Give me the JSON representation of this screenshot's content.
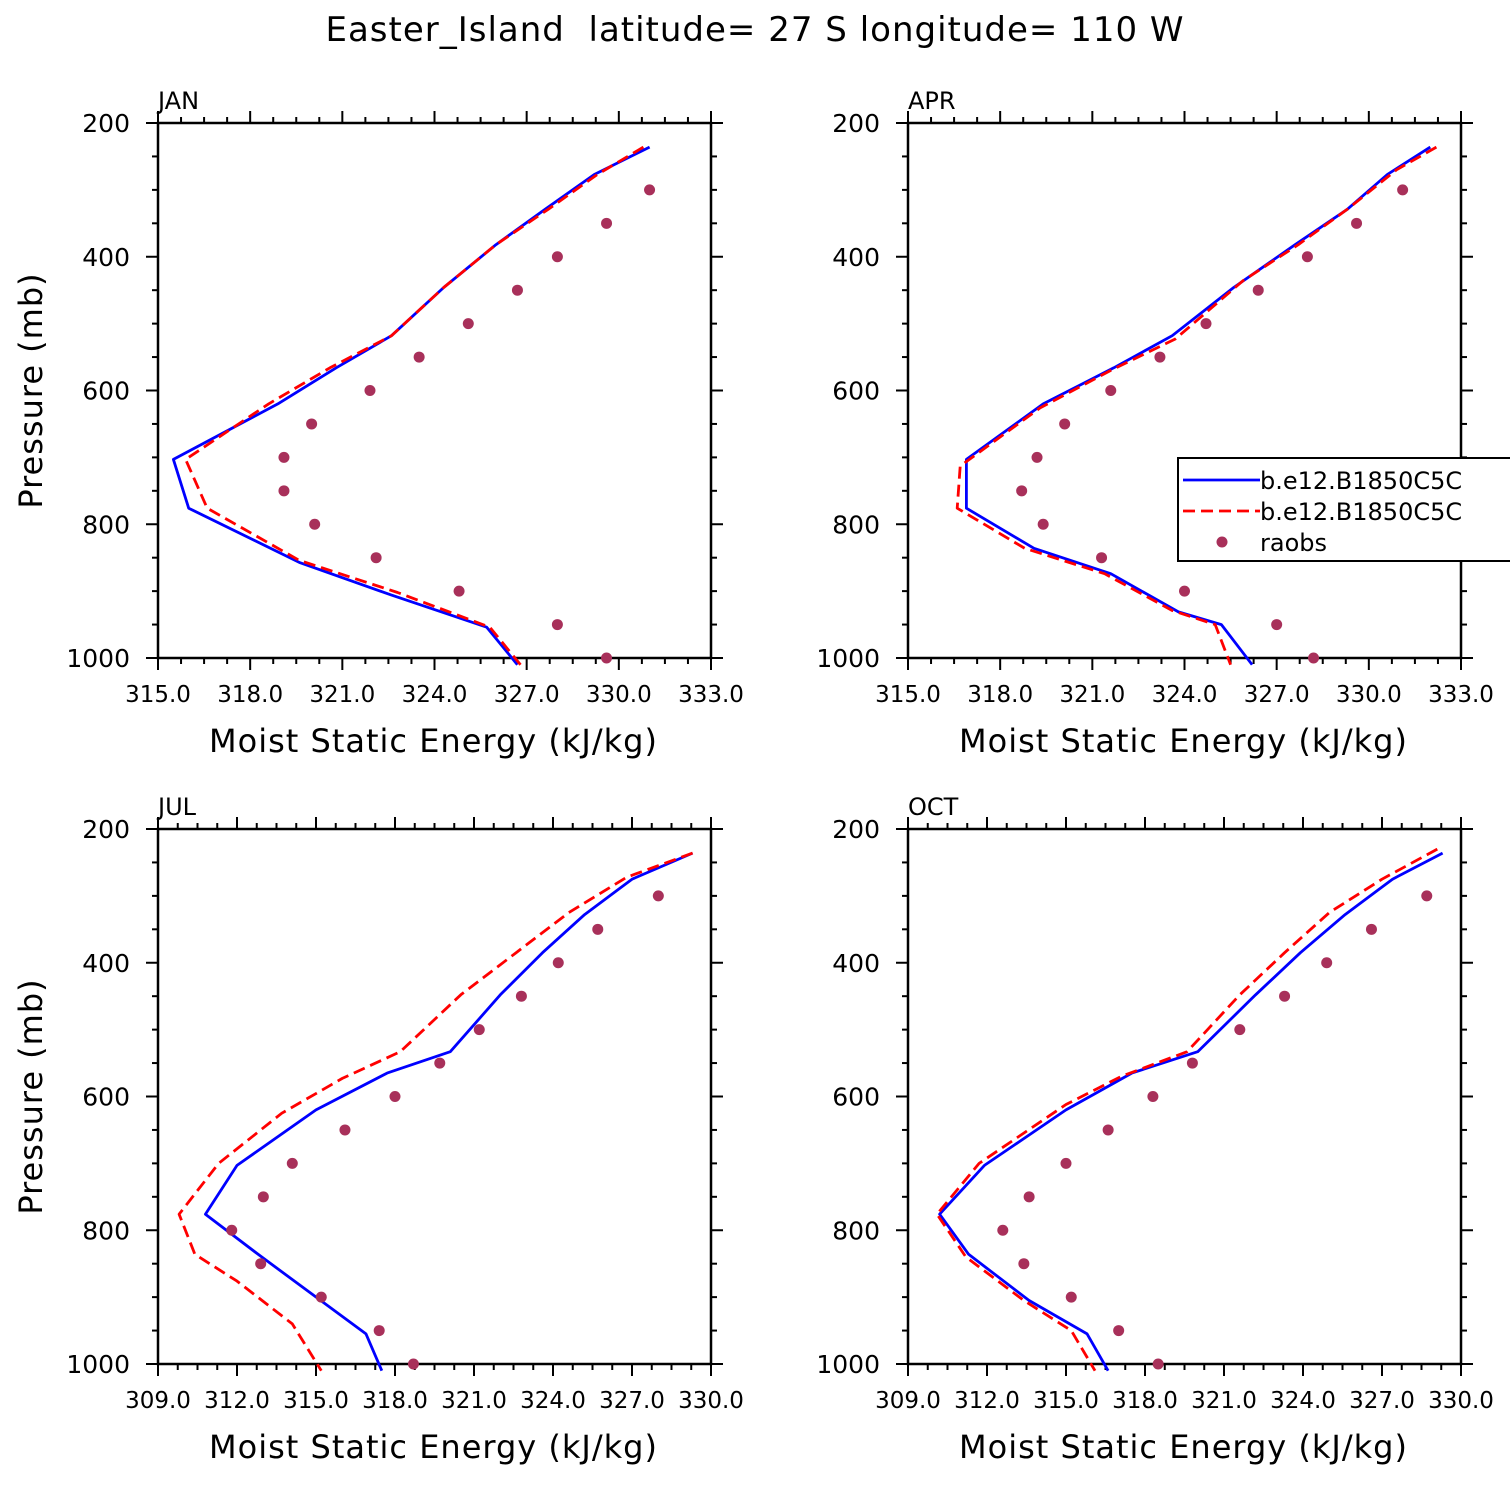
{
  "title": "Easter_Island  latitude= 27 S longitude= 110 W",
  "colors": {
    "model1": "#0000ff",
    "model2": "#ff0000",
    "raobs": "#a8305a"
  },
  "chart_data": [
    {
      "type": "line",
      "panel_label": "JAN",
      "xlabel": "Moist Static Energy (kJ/kg)",
      "ylabel": "Pressure (mb)",
      "xlim": [
        315.0,
        333.0
      ],
      "ylim": [
        1000,
        200
      ],
      "xticks": [
        315.0,
        318.0,
        321.0,
        324.0,
        327.0,
        330.0,
        333.0
      ],
      "xtick_labels": [
        "315.0",
        "318.0",
        "321.0",
        "324.0",
        "327.0",
        "330.0",
        "333.0"
      ],
      "yticks": [
        200,
        400,
        600,
        800,
        1000
      ],
      "show_legend": false,
      "series": [
        {
          "name": "b.e12.B1850C5C",
          "style": "solid",
          "points": [
            [
              331.0,
              236
            ],
            [
              329.2,
              277
            ],
            [
              327.6,
              329
            ],
            [
              326.0,
              382
            ],
            [
              324.3,
              446
            ],
            [
              322.6,
              518
            ],
            [
              320.8,
              566
            ],
            [
              318.9,
              620
            ],
            [
              315.5,
              703
            ],
            [
              316.0,
              776
            ],
            [
              319.6,
              857
            ],
            [
              322.6,
              906
            ],
            [
              325.7,
              954
            ],
            [
              326.7,
              1010
            ]
          ]
        },
        {
          "name": "b.e12.B1850C5C",
          "style": "dashed",
          "points": [
            [
              330.8,
              236
            ],
            [
              329.3,
              277
            ],
            [
              327.7,
              329
            ],
            [
              326.0,
              382
            ],
            [
              324.3,
              446
            ],
            [
              322.6,
              518
            ],
            [
              320.6,
              566
            ],
            [
              318.6,
              620
            ],
            [
              315.9,
              703
            ],
            [
              316.6,
              776
            ],
            [
              319.6,
              854
            ],
            [
              322.8,
              902
            ],
            [
              325.8,
              954
            ],
            [
              326.8,
              1010
            ]
          ]
        }
      ],
      "raobs": [
        [
          331.0,
          300
        ],
        [
          329.6,
          350
        ],
        [
          328.0,
          400
        ],
        [
          326.7,
          450
        ],
        [
          325.1,
          500
        ],
        [
          323.5,
          550
        ],
        [
          321.9,
          600
        ],
        [
          320.0,
          650
        ],
        [
          319.1,
          700
        ],
        [
          319.1,
          750
        ],
        [
          320.1,
          800
        ],
        [
          322.1,
          850
        ],
        [
          324.8,
          900
        ],
        [
          328.0,
          950
        ],
        [
          329.6,
          1000
        ]
      ]
    },
    {
      "type": "line",
      "panel_label": "APR",
      "xlabel": "Moist Static Energy (kJ/kg)",
      "ylabel": "",
      "xlim": [
        315.0,
        333.0
      ],
      "ylim": [
        1000,
        200
      ],
      "xticks": [
        315.0,
        318.0,
        321.0,
        324.0,
        327.0,
        330.0,
        333.0
      ],
      "xtick_labels": [
        "315.0",
        "318.0",
        "321.0",
        "324.0",
        "327.0",
        "330.0",
        "333.0"
      ],
      "yticks": [
        200,
        400,
        600,
        800,
        1000
      ],
      "show_legend": true,
      "series": [
        {
          "name": "b.e12.B1850C5C",
          "style": "solid",
          "points": [
            [
              332.0,
              236
            ],
            [
              330.6,
              277
            ],
            [
              329.3,
              329
            ],
            [
              327.6,
              382
            ],
            [
              325.6,
              446
            ],
            [
              323.6,
              518
            ],
            [
              321.7,
              566
            ],
            [
              319.4,
              620
            ],
            [
              316.9,
              703
            ],
            [
              316.9,
              776
            ],
            [
              319.1,
              836
            ],
            [
              321.6,
              874
            ],
            [
              323.8,
              931
            ],
            [
              325.2,
              950
            ],
            [
              326.2,
              1010
            ]
          ]
        },
        {
          "name": "b.e12.B1850C5C",
          "style": "dashed",
          "points": [
            [
              332.2,
              236
            ],
            [
              330.9,
              270
            ],
            [
              329.3,
              329
            ],
            [
              327.7,
              382
            ],
            [
              325.9,
              436
            ],
            [
              323.7,
              523
            ],
            [
              321.6,
              570
            ],
            [
              319.3,
              626
            ],
            [
              316.7,
              713
            ],
            [
              316.6,
              776
            ],
            [
              318.8,
              836
            ],
            [
              321.4,
              874
            ],
            [
              323.6,
              929
            ],
            [
              325.0,
              950
            ],
            [
              325.5,
              1010
            ]
          ]
        }
      ],
      "raobs": [
        [
          331.1,
          300
        ],
        [
          329.6,
          350
        ],
        [
          328.0,
          400
        ],
        [
          326.4,
          450
        ],
        [
          324.7,
          500
        ],
        [
          323.2,
          550
        ],
        [
          321.6,
          600
        ],
        [
          320.1,
          650
        ],
        [
          319.2,
          700
        ],
        [
          318.7,
          750
        ],
        [
          319.4,
          800
        ],
        [
          321.3,
          850
        ],
        [
          324.0,
          900
        ],
        [
          327.0,
          950
        ],
        [
          328.2,
          1000
        ]
      ]
    },
    {
      "type": "line",
      "panel_label": "JUL",
      "xlabel": "Moist Static Energy (kJ/kg)",
      "ylabel": "Pressure (mb)",
      "xlim": [
        309.0,
        330.0
      ],
      "ylim": [
        1000,
        200
      ],
      "xticks": [
        309.0,
        312.0,
        315.0,
        318.0,
        321.0,
        324.0,
        327.0,
        330.0
      ],
      "xtick_labels": [
        "309.0",
        "312.0",
        "315.0",
        "318.0",
        "321.0",
        "324.0",
        "327.0",
        "330.0"
      ],
      "yticks": [
        200,
        400,
        600,
        800,
        1000
      ],
      "show_legend": false,
      "series": [
        {
          "name": "b.e12.B1850C5C",
          "style": "solid",
          "points": [
            [
              329.3,
              236
            ],
            [
              327.0,
              275
            ],
            [
              325.2,
              328
            ],
            [
              323.6,
              385
            ],
            [
              322.0,
              448
            ],
            [
              320.1,
              533
            ],
            [
              317.7,
              565
            ],
            [
              315.0,
              620
            ],
            [
              312.0,
              703
            ],
            [
              310.8,
              776
            ],
            [
              312.8,
              836
            ],
            [
              315.9,
              926
            ],
            [
              316.9,
              955
            ],
            [
              317.5,
              1010
            ]
          ]
        },
        {
          "name": "b.e12.B1850C5C",
          "style": "dashed",
          "points": [
            [
              329.3,
              236
            ],
            [
              326.8,
              272
            ],
            [
              324.6,
              325
            ],
            [
              322.6,
              385
            ],
            [
              320.5,
              448
            ],
            [
              318.2,
              533
            ],
            [
              316.0,
              573
            ],
            [
              313.7,
              625
            ],
            [
              311.3,
              700
            ],
            [
              309.8,
              776
            ],
            [
              310.4,
              836
            ],
            [
              312.0,
              876
            ],
            [
              314.1,
              940
            ],
            [
              315.2,
              1010
            ]
          ]
        }
      ],
      "raobs": [
        [
          328.0,
          300
        ],
        [
          325.7,
          350
        ],
        [
          324.2,
          400
        ],
        [
          322.8,
          450
        ],
        [
          321.2,
          500
        ],
        [
          319.7,
          550
        ],
        [
          318.0,
          600
        ],
        [
          316.1,
          650
        ],
        [
          314.1,
          700
        ],
        [
          313.0,
          750
        ],
        [
          311.8,
          800
        ],
        [
          312.9,
          850
        ],
        [
          315.2,
          900
        ],
        [
          317.4,
          950
        ],
        [
          318.7,
          1000
        ]
      ]
    },
    {
      "type": "line",
      "panel_label": "OCT",
      "xlabel": "Moist Static Energy (kJ/kg)",
      "ylabel": "",
      "xlim": [
        309.0,
        330.0
      ],
      "ylim": [
        1000,
        200
      ],
      "xticks": [
        309.0,
        312.0,
        315.0,
        318.0,
        321.0,
        324.0,
        327.0,
        330.0
      ],
      "xtick_labels": [
        "309.0",
        "312.0",
        "315.0",
        "318.0",
        "321.0",
        "324.0",
        "327.0",
        "330.0"
      ],
      "yticks": [
        200,
        400,
        600,
        800,
        1000
      ],
      "show_legend": false,
      "series": [
        {
          "name": "b.e12.B1850C5C",
          "style": "solid",
          "points": [
            [
              329.3,
              236
            ],
            [
              327.4,
              275
            ],
            [
              325.6,
              328
            ],
            [
              323.9,
              385
            ],
            [
              322.2,
              448
            ],
            [
              320.0,
              533
            ],
            [
              317.5,
              565
            ],
            [
              315.0,
              620
            ],
            [
              311.9,
              703
            ],
            [
              310.2,
              776
            ],
            [
              311.3,
              836
            ],
            [
              313.6,
              905
            ],
            [
              315.8,
              955
            ],
            [
              316.6,
              1010
            ]
          ]
        },
        {
          "name": "b.e12.B1850C5C",
          "style": "dashed",
          "points": [
            [
              329.1,
              230
            ],
            [
              327.0,
              275
            ],
            [
              325.0,
              325
            ],
            [
              323.3,
              385
            ],
            [
              321.6,
              448
            ],
            [
              319.6,
              533
            ],
            [
              317.1,
              570
            ],
            [
              315.0,
              612
            ],
            [
              311.7,
              700
            ],
            [
              310.1,
              776
            ],
            [
              311.2,
              840
            ],
            [
              313.4,
              905
            ],
            [
              315.2,
              950
            ],
            [
              316.1,
              1010
            ]
          ]
        }
      ],
      "raobs": [
        [
          328.7,
          300
        ],
        [
          326.6,
          350
        ],
        [
          324.9,
          400
        ],
        [
          323.3,
          450
        ],
        [
          321.6,
          500
        ],
        [
          319.8,
          550
        ],
        [
          318.3,
          600
        ],
        [
          316.6,
          650
        ],
        [
          315.0,
          700
        ],
        [
          313.6,
          750
        ],
        [
          312.6,
          800
        ],
        [
          313.4,
          850
        ],
        [
          315.2,
          900
        ],
        [
          317.0,
          950
        ],
        [
          318.5,
          1000
        ]
      ]
    }
  ],
  "legend": {
    "items": [
      {
        "label": "b.e12.B1850C5C",
        "style": "solid"
      },
      {
        "label": "b.e12.B1850C5C",
        "style": "dashed"
      },
      {
        "label": "raobs",
        "style": "marker"
      }
    ]
  }
}
